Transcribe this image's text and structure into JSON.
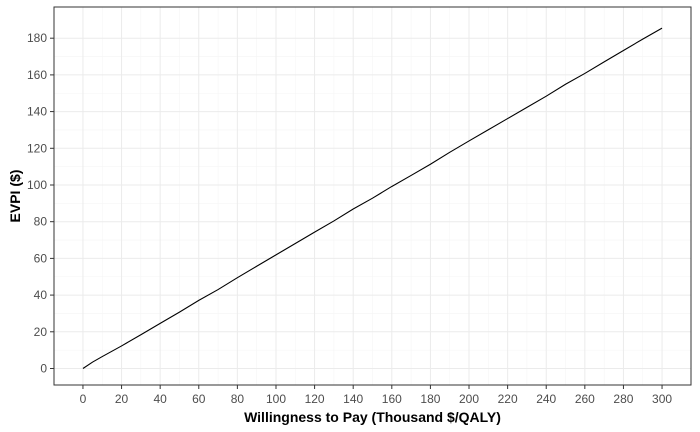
{
  "chart_data": {
    "type": "line",
    "title": "",
    "xlabel": "Willingness to Pay (Thousand $/QALY)",
    "ylabel": "EVPI ($)",
    "xlim": [
      -15,
      315
    ],
    "ylim": [
      -9,
      197
    ],
    "x_ticks": [
      0,
      20,
      40,
      60,
      80,
      100,
      120,
      140,
      160,
      180,
      200,
      220,
      240,
      260,
      280,
      300
    ],
    "y_ticks": [
      0,
      20,
      40,
      60,
      80,
      100,
      120,
      140,
      160,
      180
    ],
    "grid": true,
    "legend": "none",
    "series": [
      {
        "color": "#000000",
        "x": [
          0,
          5,
          10,
          20,
          30,
          40,
          50,
          60,
          70,
          80,
          90,
          100,
          110,
          120,
          130,
          140,
          150,
          160,
          170,
          180,
          190,
          200,
          210,
          220,
          230,
          240,
          250,
          260,
          270,
          280,
          290,
          300
        ],
        "y": [
          0,
          3.5,
          6.5,
          12.3,
          18.4,
          24.6,
          30.7,
          37.1,
          43.0,
          49.5,
          55.7,
          61.9,
          68.1,
          74.3,
          80.4,
          86.9,
          92.8,
          99.2,
          105.2,
          111.3,
          117.8,
          124.0,
          130.1,
          136.2,
          142.3,
          148.4,
          154.9,
          160.8,
          167.1,
          173.3,
          179.5,
          185.5
        ]
      }
    ]
  }
}
